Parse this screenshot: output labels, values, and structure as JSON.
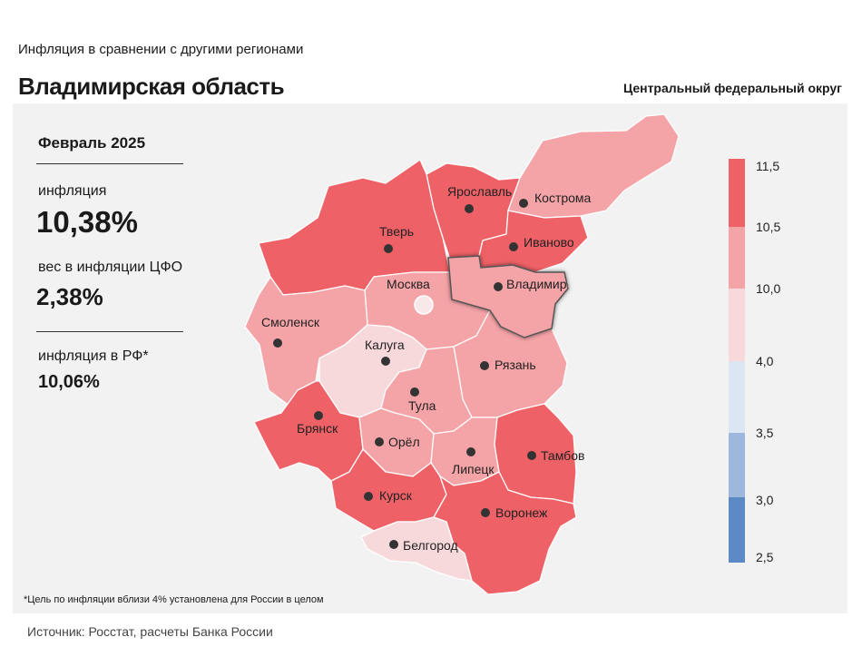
{
  "header": {
    "subtitle": "Инфляция в сравнении с другими регионами",
    "title": "Владимирская область",
    "district": "Центральный федеральный округ"
  },
  "stats": {
    "period": "Февраль 2025",
    "inflation_label": "инфляция",
    "inflation_value": "10,38%",
    "weight_label": "вес в инфляции ЦФО",
    "weight_value": "2,38%",
    "rf_label": "инфляция в РФ*",
    "rf_value": "10,06%"
  },
  "footnote": "*Цель по инфляции вблизи 4% установлена для России в целом",
  "source": "Источник: Росстат, расчеты Банка России",
  "legend": {
    "ticks": [
      "11,5",
      "10,5",
      "10,0",
      "4,0",
      "3,5",
      "3,0",
      "2,5"
    ],
    "colors": [
      "#ee6166",
      "#f4a3a7",
      "#f7d9dc",
      "#dce6f3",
      "#9db8dc",
      "#5b8ac6"
    ]
  },
  "map_colors": {
    "high": "#ee6166",
    "mid": "#f4a3a7",
    "low": "#f7d9dc"
  },
  "regions": [
    {
      "name": "Ярославль",
      "color_class": "high"
    },
    {
      "name": "Кострома",
      "color_class": "mid"
    },
    {
      "name": "Тверь",
      "color_class": "high"
    },
    {
      "name": "Иваново",
      "color_class": "high"
    },
    {
      "name": "Москва",
      "color_class": "mid"
    },
    {
      "name": "Владимир",
      "color_class": "mid",
      "highlighted": true
    },
    {
      "name": "Смоленск",
      "color_class": "mid"
    },
    {
      "name": "Калуга",
      "color_class": "low"
    },
    {
      "name": "Рязань",
      "color_class": "mid"
    },
    {
      "name": "Тула",
      "color_class": "mid"
    },
    {
      "name": "Брянск",
      "color_class": "high"
    },
    {
      "name": "Орёл",
      "color_class": "mid"
    },
    {
      "name": "Липецк",
      "color_class": "mid"
    },
    {
      "name": "Тамбов",
      "color_class": "high"
    },
    {
      "name": "Курск",
      "color_class": "high"
    },
    {
      "name": "Воронеж",
      "color_class": "high"
    },
    {
      "name": "Белгород",
      "color_class": "low"
    }
  ]
}
